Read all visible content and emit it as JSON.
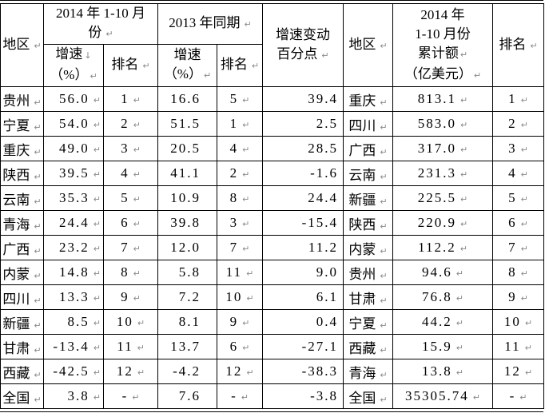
{
  "colors": {
    "border": "#000000",
    "text": "#000000",
    "mark": "#8a8a8a",
    "background": "#ffffff"
  },
  "marks": {
    "cell_end": "↵",
    "line_break": "↓"
  },
  "table": {
    "header": {
      "region": "地区",
      "period2014": [
        "2014 年 1-10 月",
        "份"
      ],
      "period2013": "2013 年同期",
      "growth": [
        "增速",
        "（%）"
      ],
      "rank": "排名",
      "change": [
        "增速变动",
        "百分点"
      ],
      "region2": "地区",
      "amount": [
        "2014 年",
        "1-10 月份",
        "累计额",
        "（亿美元）"
      ],
      "rank2": "排名"
    },
    "rows": [
      [
        "贵州",
        "56.0",
        "1",
        "16.6",
        "5",
        "39.4",
        "重庆",
        "813.1",
        "1"
      ],
      [
        "宁夏",
        "54.0",
        "2",
        "51.5",
        "1",
        "2.5",
        "四川",
        "583.0",
        "2"
      ],
      [
        "重庆",
        "49.0",
        "3",
        "20.5",
        "4",
        "28.5",
        "广西",
        "317.0",
        "3"
      ],
      [
        "陕西",
        "39.5",
        "4",
        "41.1",
        "2",
        "-1.6",
        "云南",
        "231.3",
        "4"
      ],
      [
        "云南",
        "35.3",
        "5",
        "10.9",
        "8",
        "24.4",
        "新疆",
        "225.5",
        "5"
      ],
      [
        "青海",
        "24.4",
        "6",
        "39.8",
        "3",
        "-15.4",
        "陕西",
        "220.9",
        "6"
      ],
      [
        "广西",
        "23.2",
        "7",
        "12.0",
        "7",
        "11.2",
        "内蒙",
        "112.2",
        "7"
      ],
      [
        "内蒙",
        "14.8",
        "8",
        "5.8",
        "11",
        "9.0",
        "贵州",
        "94.6",
        "8"
      ],
      [
        "四川",
        "13.3",
        "9",
        "7.2",
        "10",
        "6.1",
        "甘肃",
        "76.8",
        "9"
      ],
      [
        "新疆",
        "8.5",
        "10",
        "8.1",
        "9",
        "0.4",
        "宁夏",
        "44.2",
        "10"
      ],
      [
        "甘肃",
        "-13.4",
        "11",
        "13.7",
        "6",
        "-27.1",
        "西藏",
        "15.9",
        "11"
      ],
      [
        "西藏",
        "-42.5",
        "12",
        "-4.2",
        "12",
        "-38.3",
        "青海",
        "13.8",
        "12"
      ],
      [
        "全国",
        "3.8",
        "-",
        "7.6",
        "-",
        "-3.8",
        "全国",
        "35305.74",
        "-"
      ]
    ]
  }
}
